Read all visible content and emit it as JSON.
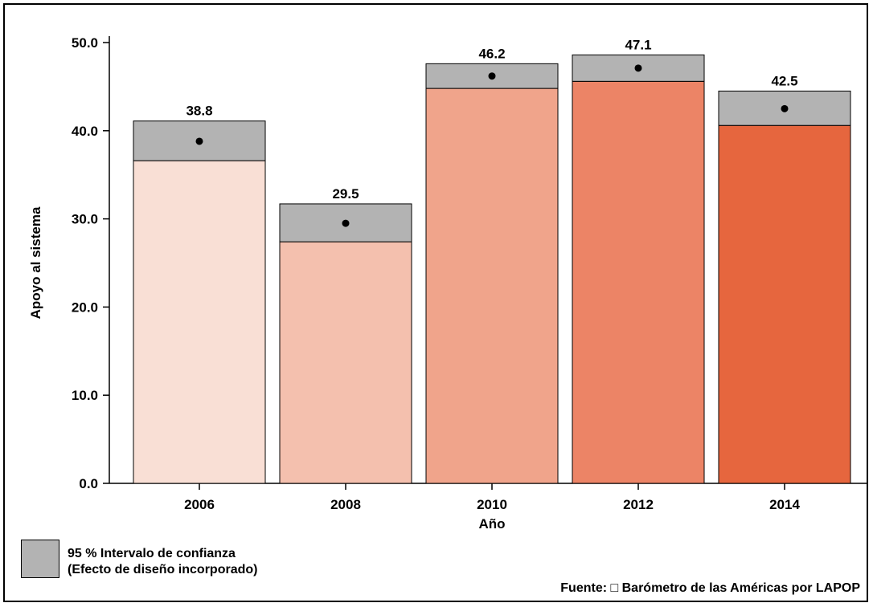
{
  "chart_data": {
    "type": "bar",
    "categories": [
      "2006",
      "2008",
      "2010",
      "2012",
      "2014"
    ],
    "values": [
      38.8,
      29.5,
      46.2,
      47.1,
      42.5
    ],
    "value_labels": [
      "38.8",
      "29.5",
      "46.2",
      "47.1",
      "42.5"
    ],
    "ci_lower": [
      36.6,
      27.4,
      44.8,
      45.6,
      40.6
    ],
    "ci_upper": [
      41.1,
      31.7,
      47.6,
      48.6,
      44.5
    ],
    "bar_colors": [
      "#f9dfd5",
      "#f4c0ae",
      "#f0a48b",
      "#ec8466",
      "#e6663e"
    ],
    "ci_color": "#b3b3b3",
    "xlabel": "Año",
    "ylabel": "Apoyo al sistema",
    "ylim": [
      0,
      50
    ],
    "yticks": [
      0,
      10,
      20,
      30,
      40,
      50
    ],
    "ytick_labels": [
      "0.0",
      "10.0",
      "20.0",
      "30.0",
      "40.0",
      "50.0"
    ],
    "grid": false,
    "legend": {
      "position": "bottom-left",
      "lines": [
        "95 % Intervalo de confianza",
        "(Efecto de diseño incorporado)"
      ]
    }
  },
  "source": "Fuente: □ Barómetro de las Américas por LAPOP"
}
